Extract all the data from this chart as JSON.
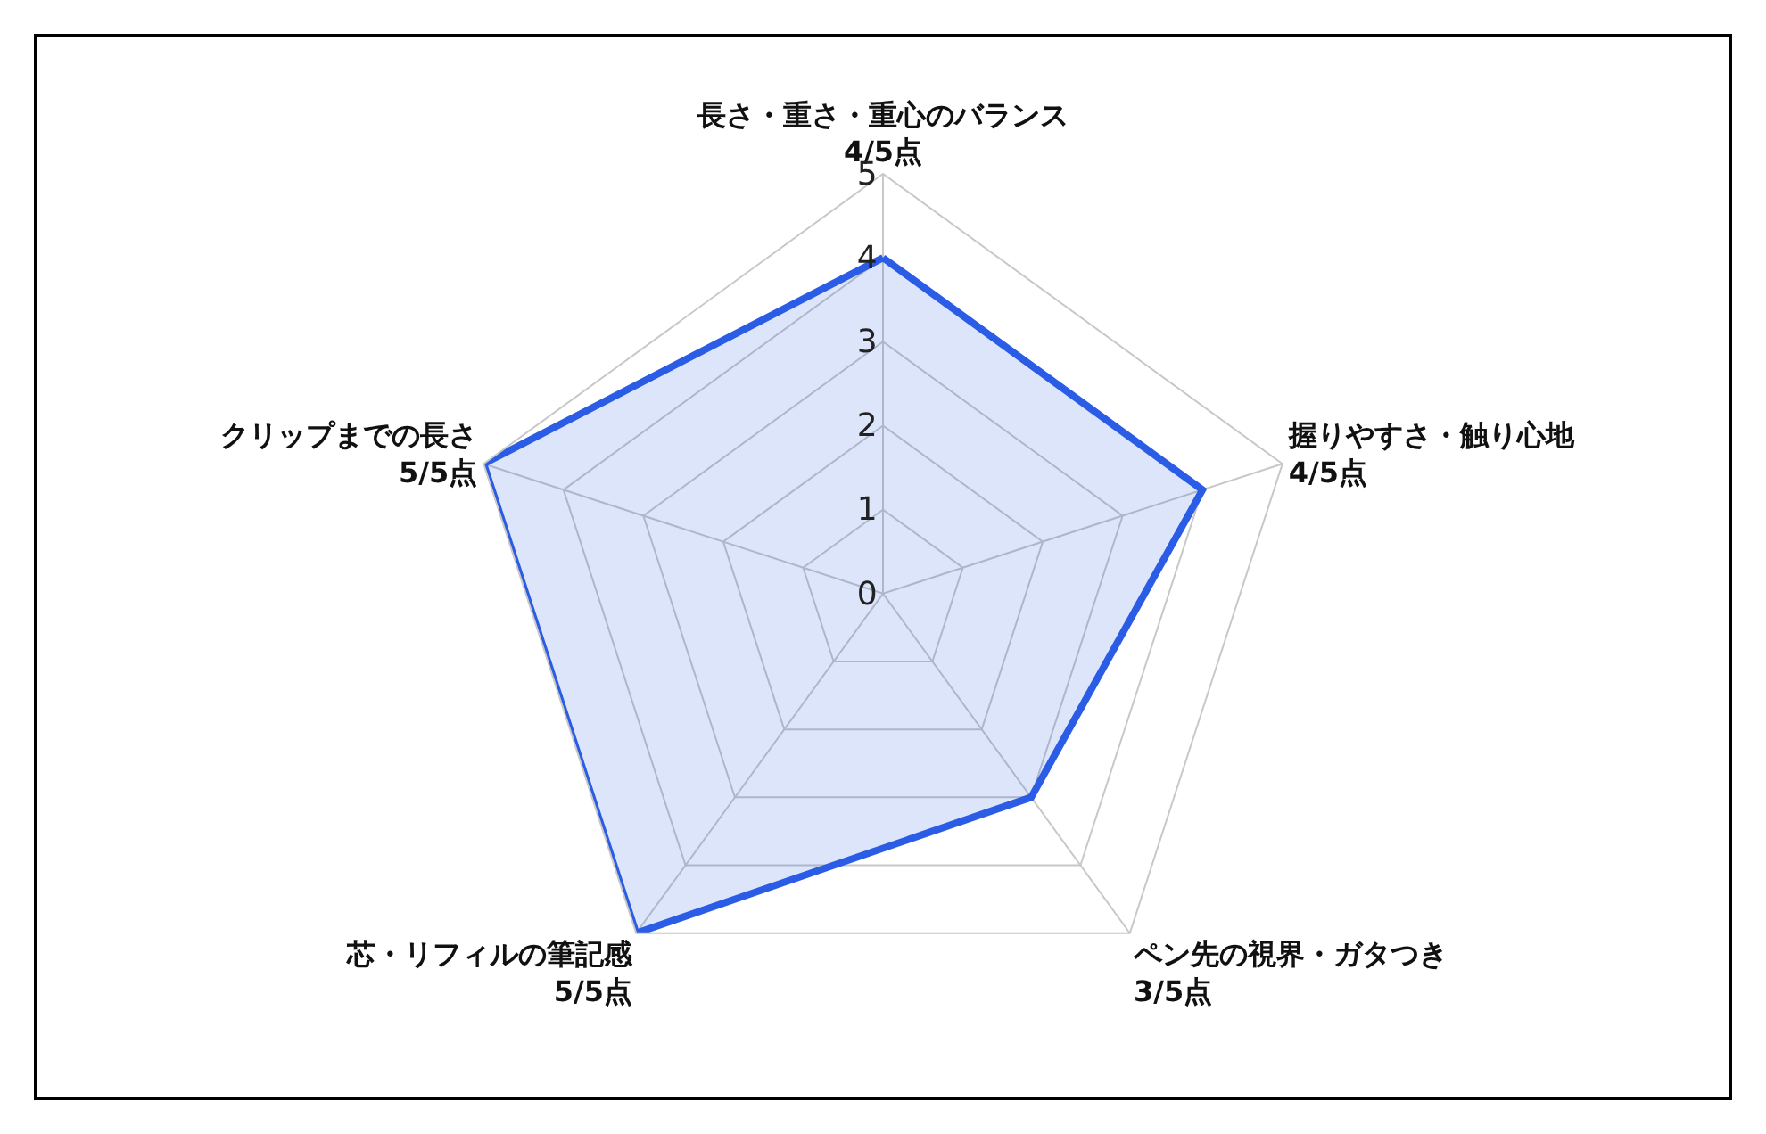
{
  "chart_data": {
    "type": "radar",
    "categories": [
      "長さ・重さ・重心のバランス\n4/5点",
      "握りやすさ・触り心地\n4/5点",
      "ペン先の視界・ガタつき\n3/5点",
      "芯・リフィルの筆記感\n5/5点",
      "クリップまでの長さ\n5/5点"
    ],
    "values": [
      4,
      4,
      3,
      5,
      5
    ],
    "color": "#2b5ce6",
    "ylim": [
      0,
      5
    ],
    "yticks": [
      0,
      1,
      2,
      3,
      4,
      5
    ],
    "grid": true
  }
}
